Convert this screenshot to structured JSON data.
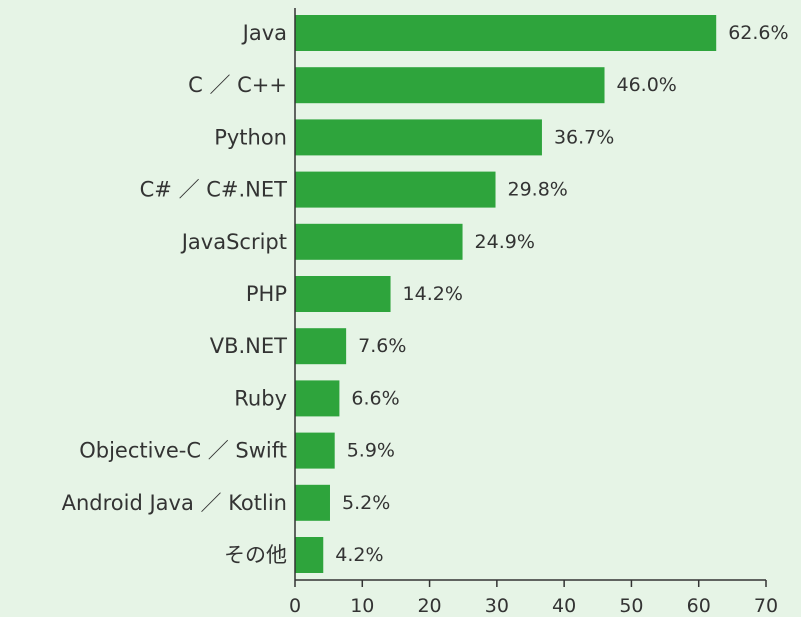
{
  "chart_data": {
    "type": "bar",
    "orientation": "horizontal",
    "title": "",
    "xlabel": "",
    "ylabel": "",
    "categories": [
      "Java",
      "C ／ C++",
      "Python",
      "C# ／ C#.NET",
      "JavaScript",
      "PHP",
      "VB.NET",
      "Ruby",
      "Objective‐C ／ Swift",
      "Android Java ／ Kotlin",
      "その他"
    ],
    "values": [
      62.6,
      46.0,
      36.7,
      29.8,
      24.9,
      14.2,
      7.6,
      6.6,
      5.9,
      5.2,
      4.2
    ],
    "value_labels": [
      "62.6%",
      "46.0%",
      "36.7%",
      "29.8%",
      "24.9%",
      "14.2%",
      "7.6%",
      "6.6%",
      "5.9%",
      "5.2%",
      "4.2%"
    ],
    "xlim": [
      0,
      70
    ],
    "xticks": [
      0,
      10,
      20,
      30,
      40,
      50,
      60,
      70
    ],
    "grid": false,
    "legend": "none",
    "bar_color": "#2ea43c",
    "background_color": "#e6f4e6"
  }
}
